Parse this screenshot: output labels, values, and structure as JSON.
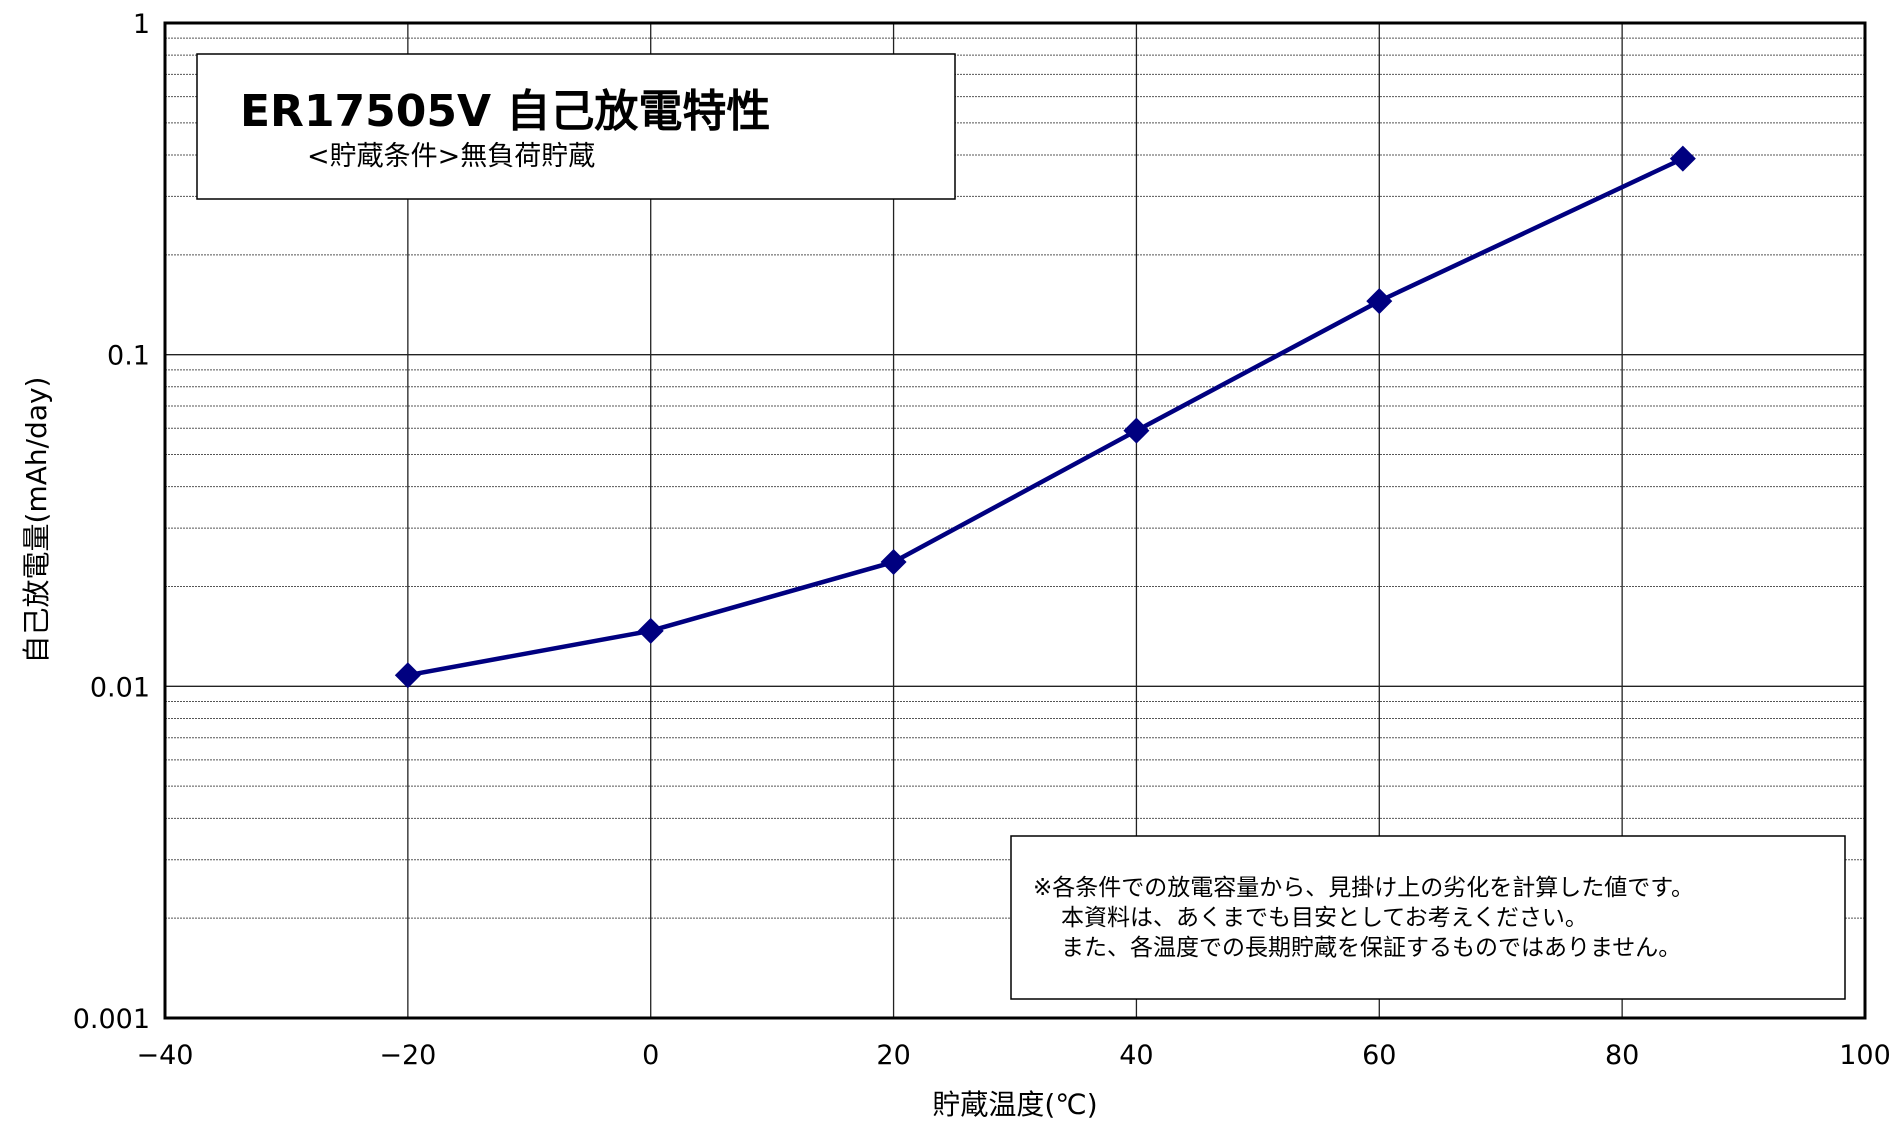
{
  "chart_data": {
    "type": "line",
    "title": "ER17505V 自己放電特性",
    "subtitle": "<貯蔵条件>無負荷貯蔵",
    "xlabel": "貯蔵温度(℃)",
    "ylabel": "自己放電量(mAh/day)",
    "xlim": [
      -40,
      100
    ],
    "ylim": [
      0.001,
      1
    ],
    "yscale": "log",
    "grid": true,
    "x_ticks": [
      -40,
      -20,
      0,
      20,
      40,
      60,
      80,
      100
    ],
    "x_tick_labels": [
      "−40",
      "−20",
      "0",
      "20",
      "40",
      "60",
      "80",
      "100"
    ],
    "y_ticks": [
      0.001,
      0.01,
      0.1,
      1
    ],
    "y_tick_labels": [
      "0.001",
      "0.01",
      "0.1",
      "1"
    ],
    "series": [
      {
        "color": "#000080",
        "marker": "diamond",
        "x": [
          -20,
          0,
          20,
          40,
          60,
          85
        ],
        "y": [
          0.0108,
          0.0147,
          0.0237,
          0.059,
          0.145,
          0.39
        ]
      }
    ],
    "note_lines": [
      "※各条件での放電容量から、見掛け上の劣化を計算した値です。",
      "本資料は、あくまでも目安としてお考えください。",
      "また、各温度での長期貯蔵を保証するものではありません。"
    ]
  }
}
